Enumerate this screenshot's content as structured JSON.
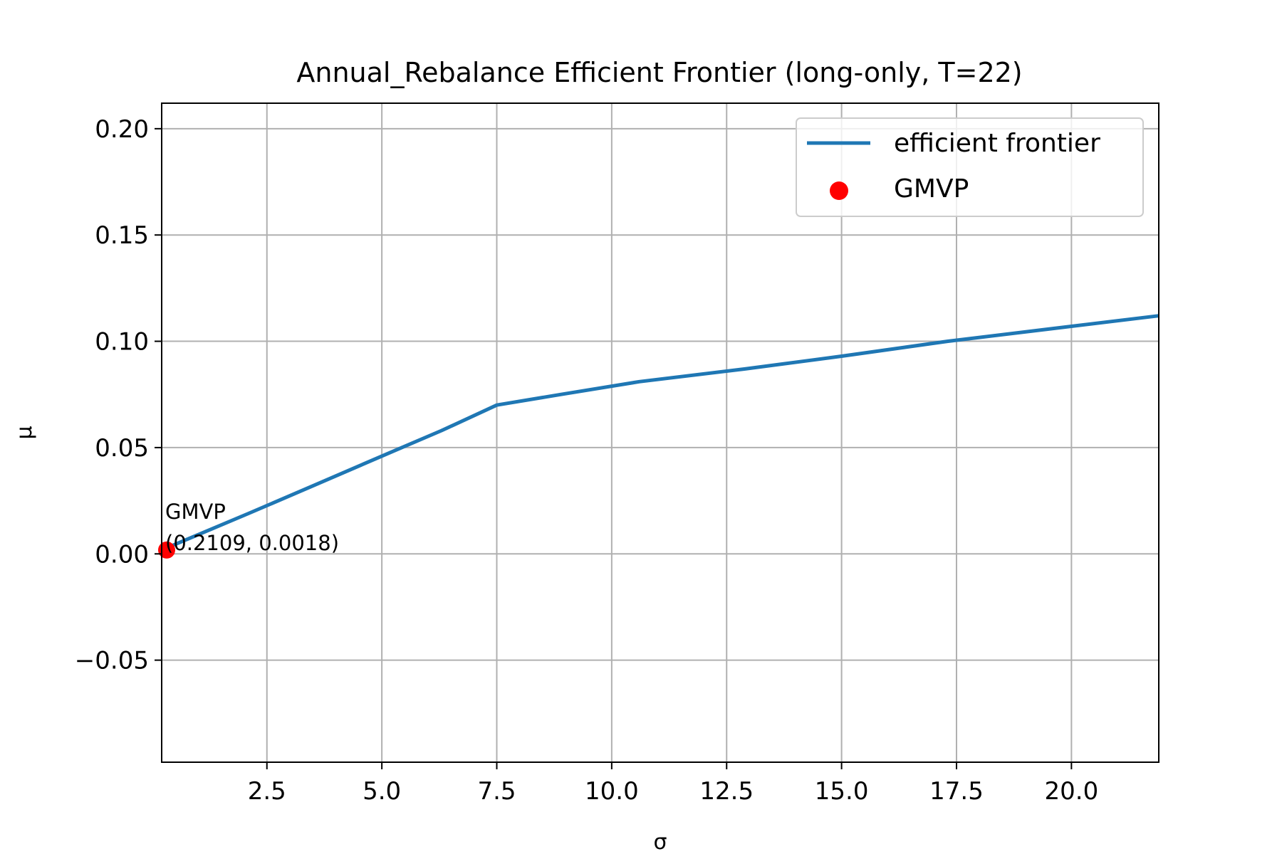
{
  "chart_data": {
    "type": "line",
    "title": "Annual_Rebalance Efficient Frontier (long-only, T=22)",
    "xlabel": "σ",
    "ylabel": "μ",
    "xlim": [
      0.2109,
      21.9
    ],
    "ylim": [
      -0.098,
      0.212
    ],
    "xticks": [
      2.5,
      5.0,
      7.5,
      10.0,
      12.5,
      15.0,
      17.5,
      20.0
    ],
    "xtick_labels": [
      "2.5",
      "5.0",
      "7.5",
      "10.0",
      "12.5",
      "15.0",
      "17.5",
      "20.0"
    ],
    "yticks": [
      -0.05,
      0.0,
      0.05,
      0.1,
      0.15,
      0.2
    ],
    "ytick_labels": [
      "−0.05",
      "0.00",
      "0.05",
      "0.10",
      "0.15",
      "0.20"
    ],
    "grid": true,
    "legend_position": "top-right",
    "series": [
      {
        "name": "efficient frontier",
        "kind": "line",
        "color": "#1f77b4",
        "x": [
          0.2109,
          1.0,
          2.1,
          3.5,
          5.0,
          6.3,
          7.5,
          8.9,
          10.6,
          12.9,
          15.0,
          17.3,
          19.6,
          21.9
        ],
        "y": [
          0.0018,
          0.009,
          0.019,
          0.032,
          0.046,
          0.058,
          0.07,
          0.075,
          0.081,
          0.087,
          0.093,
          0.1,
          0.106,
          0.112
        ]
      },
      {
        "name": "GMVP",
        "kind": "scatter",
        "color": "#ff0000",
        "x": [
          0.2109
        ],
        "y": [
          0.0018
        ]
      }
    ],
    "annotation": {
      "line1": "GMVP",
      "line2": "(0.2109, 0.0018)",
      "x": 0.2109,
      "y": 0.0018
    }
  }
}
